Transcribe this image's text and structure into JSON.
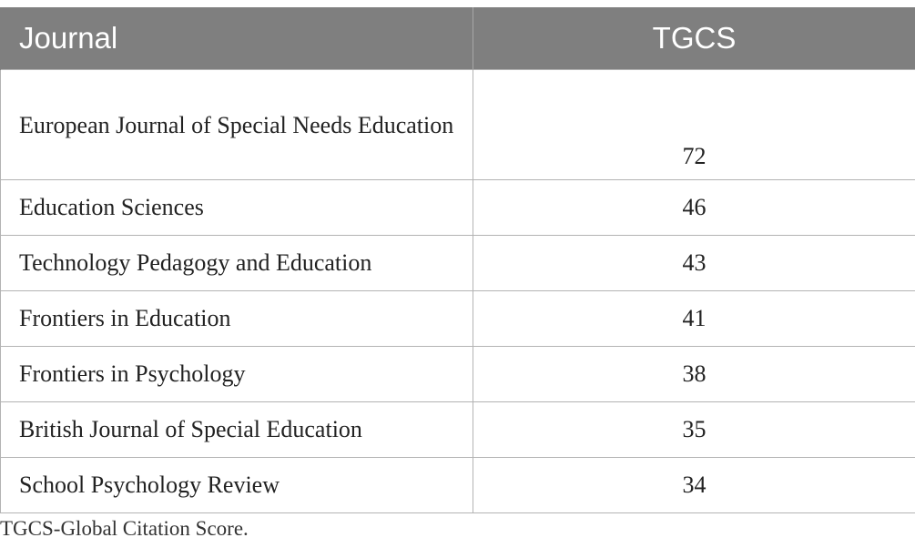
{
  "table": {
    "headers": {
      "journal": "Journal",
      "tgcs": "TGCS"
    },
    "rows": [
      {
        "journal": "European Journal of Special Needs Education",
        "tgcs": "72"
      },
      {
        "journal": "Education Sciences",
        "tgcs": "46"
      },
      {
        "journal": "Technology Pedagogy and Education",
        "tgcs": "43"
      },
      {
        "journal": "Frontiers in Education",
        "tgcs": "41"
      },
      {
        "journal": "Frontiers in Psychology",
        "tgcs": "38"
      },
      {
        "journal": "British Journal of Special Education",
        "tgcs": "35"
      },
      {
        "journal": "School Psychology Review",
        "tgcs": "34"
      }
    ],
    "header_color": "#7f7f7f"
  },
  "footnote": "TGCS-Global Citation Score."
}
